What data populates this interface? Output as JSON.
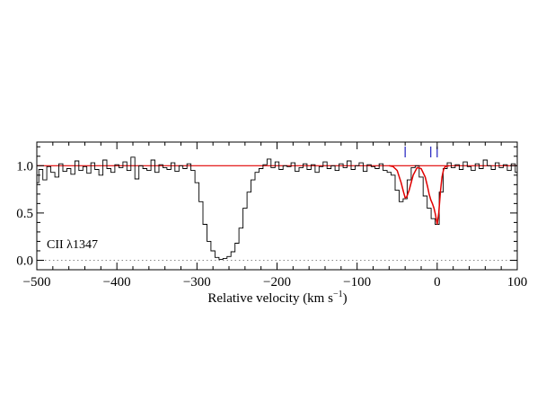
{
  "chart_data": {
    "type": "line",
    "annotation": "CII λ1347",
    "xlabel_main": "Relative velocity (km s",
    "xlabel_sup": "−1",
    "xlabel_close": ")",
    "xlim": [
      -500,
      100
    ],
    "ylim": [
      -0.1,
      1.25
    ],
    "x_ticks": [
      -500,
      -400,
      -300,
      -200,
      -100,
      0,
      100
    ],
    "x_tick_labels": [
      "−500",
      "−400",
      "−300",
      "−200",
      "−100",
      "0",
      "100"
    ],
    "y_ticks": [
      0.0,
      0.5,
      1.0
    ],
    "y_tick_labels": [
      "0.0",
      "0.5",
      "1.0"
    ],
    "continuum_level": 1.0,
    "zero_level": 0.0,
    "component_velocities": [
      -40,
      -8,
      0
    ],
    "colors": {
      "data": "#000000",
      "fit": "#e00000",
      "continuum": "#e00000",
      "ticks": "#2020c0",
      "zero": "#888888"
    },
    "series": [
      {
        "role": "data",
        "x": [
          -500,
          -495,
          -490,
          -485,
          -480,
          -475,
          -470,
          -465,
          -460,
          -455,
          -450,
          -445,
          -440,
          -435,
          -430,
          -425,
          -420,
          -415,
          -410,
          -405,
          -400,
          -395,
          -390,
          -385,
          -380,
          -375,
          -370,
          -365,
          -360,
          -355,
          -350,
          -345,
          -340,
          -335,
          -330,
          -325,
          -320,
          -315,
          -310,
          -305,
          -300,
          -295,
          -290,
          -285,
          -280,
          -275,
          -270,
          -265,
          -260,
          -255,
          -250,
          -245,
          -240,
          -235,
          -230,
          -225,
          -220,
          -215,
          -210,
          -205,
          -200,
          -195,
          -190,
          -185,
          -180,
          -175,
          -170,
          -165,
          -160,
          -155,
          -150,
          -145,
          -140,
          -135,
          -130,
          -125,
          -120,
          -115,
          -110,
          -105,
          -100,
          -95,
          -90,
          -85,
          -80,
          -75,
          -70,
          -65,
          -60,
          -55,
          -50,
          -45,
          -40,
          -35,
          -30,
          -25,
          -20,
          -15,
          -10,
          -5,
          0,
          5,
          10,
          15,
          20,
          25,
          30,
          35,
          40,
          45,
          50,
          55,
          60,
          65,
          70,
          75,
          80,
          85,
          90,
          95,
          100
        ],
        "y": [
          0.82,
          0.96,
          0.85,
          0.99,
          0.93,
          0.88,
          1.02,
          0.94,
          0.97,
          0.91,
          1.05,
          0.95,
          0.99,
          0.92,
          1.03,
          0.96,
          0.9,
          1.06,
          0.97,
          0.93,
          1.01,
          0.98,
          1.04,
          0.95,
          1.09,
          0.86,
          1.0,
          0.97,
          0.95,
          1.06,
          0.93,
          1.01,
          0.98,
          0.96,
          1.03,
          0.94,
          1.0,
          0.97,
          1.02,
          0.95,
          0.82,
          0.62,
          0.38,
          0.2,
          0.1,
          0.03,
          0.01,
          0.02,
          0.04,
          0.09,
          0.18,
          0.34,
          0.55,
          0.72,
          0.85,
          0.93,
          0.97,
          1.01,
          1.07,
          0.98,
          1.04,
          0.96,
          1.0,
          0.99,
          1.03,
          0.94,
          0.98,
          1.02,
          0.96,
          1.01,
          0.93,
          0.99,
          1.04,
          0.97,
          1.0,
          0.95,
          1.02,
          0.98,
          1.05,
          0.96,
          1.0,
          1.03,
          0.94,
          1.01,
          0.99,
          0.97,
          1.02,
          0.95,
          0.93,
          0.9,
          0.74,
          0.62,
          0.65,
          0.85,
          0.98,
          1.0,
          0.88,
          0.68,
          0.55,
          0.44,
          0.38,
          0.72,
          0.97,
          1.03,
          0.98,
          1.01,
          0.96,
          1.04,
          0.99,
          0.95,
          1.02,
          0.97,
          1.06,
          1.0,
          0.96,
          1.03,
          0.98,
          1.01,
          0.95,
          1.02,
          0.93
        ]
      },
      {
        "role": "fit",
        "x": [
          -60,
          -55,
          -50,
          -45,
          -42,
          -40,
          -38,
          -35,
          -30,
          -25,
          -20,
          -15,
          -12,
          -10,
          -8,
          -6,
          -4,
          -2,
          0,
          2,
          4,
          6,
          8,
          10,
          15
        ],
        "y": [
          1.0,
          0.99,
          0.95,
          0.82,
          0.72,
          0.66,
          0.67,
          0.74,
          0.9,
          0.98,
          0.97,
          0.88,
          0.78,
          0.7,
          0.64,
          0.6,
          0.55,
          0.48,
          0.38,
          0.5,
          0.72,
          0.88,
          0.96,
          0.99,
          1.0
        ]
      }
    ]
  }
}
